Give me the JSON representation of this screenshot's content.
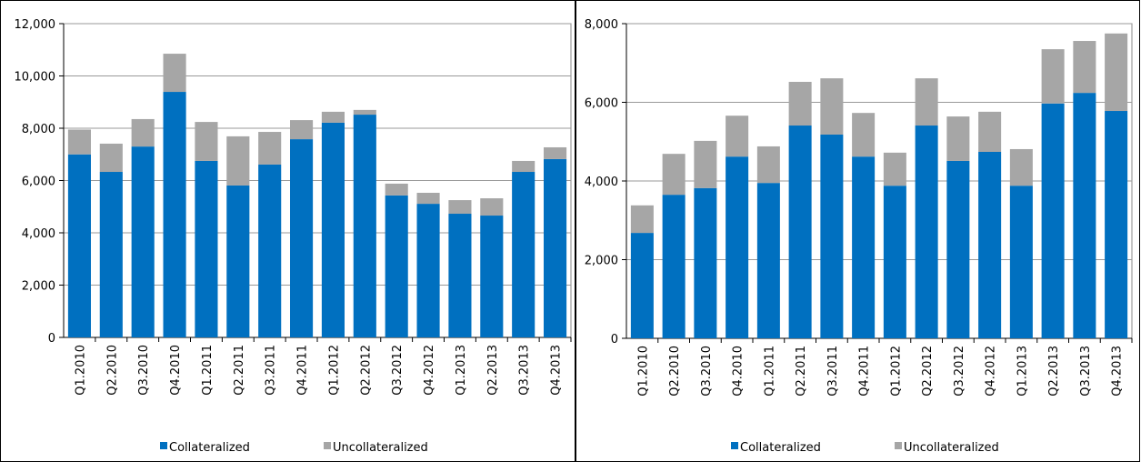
{
  "chart_data": [
    {
      "type": "bar",
      "stacked": true,
      "grid": true,
      "legend": "bottom",
      "categories": [
        "Q1.2010",
        "Q2.2010",
        "Q3.2010",
        "Q4.2010",
        "Q1.2011",
        "Q2.2011",
        "Q3.2011",
        "Q4.2011",
        "Q1.2012",
        "Q2.2012",
        "Q3.2012",
        "Q4.2012",
        "Q1.2013",
        "Q2.2013",
        "Q3.2013",
        "Q4.2013"
      ],
      "series": [
        {
          "name": "Collateralized",
          "color": "#0070c0",
          "values": [
            7000,
            6330,
            7300,
            9390,
            6750,
            5810,
            6610,
            7580,
            8210,
            8520,
            5430,
            5110,
            4730,
            4660,
            6330,
            6820
          ]
        },
        {
          "name": "Uncollateralized",
          "color": "#a6a6a6",
          "values": [
            950,
            1080,
            1050,
            1460,
            1490,
            1880,
            1250,
            730,
            420,
            180,
            450,
            420,
            520,
            660,
            420,
            450
          ]
        }
      ],
      "ylim": [
        0,
        12000
      ],
      "yticks": [
        0,
        {
          "value": 2000,
          "label": "2,000"
        },
        {
          "value": 4000,
          "label": "4,000"
        },
        {
          "value": 6000,
          "label": "6,000"
        },
        {
          "value": 8000,
          "label": "8,000"
        },
        {
          "value": 10000,
          "label": "10,000"
        },
        {
          "value": 12000,
          "label": "12,000"
        }
      ]
    },
    {
      "type": "bar",
      "stacked": true,
      "grid": true,
      "legend": "bottom",
      "categories": [
        "Q1.2010",
        "Q2.2010",
        "Q3.2010",
        "Q4.2010",
        "Q1.2011",
        "Q2.2011",
        "Q3.2011",
        "Q4.2011",
        "Q1.2012",
        "Q2.2012",
        "Q3.2012",
        "Q4.2012",
        "Q1.2013",
        "Q2.2013",
        "Q3.2013",
        "Q4.2013"
      ],
      "series": [
        {
          "name": "Collateralized",
          "color": "#0070c0",
          "values": [
            2680,
            3650,
            3820,
            4620,
            3950,
            5410,
            5180,
            4620,
            3880,
            5410,
            4510,
            4740,
            3880,
            5970,
            6240,
            5780
          ]
        },
        {
          "name": "Uncollateralized",
          "color": "#a6a6a6",
          "values": [
            700,
            1040,
            1200,
            1040,
            930,
            1110,
            1430,
            1110,
            840,
            1200,
            1130,
            1020,
            930,
            1380,
            1320,
            1970
          ]
        }
      ],
      "ylim": [
        0,
        8000
      ],
      "yticks": [
        0,
        {
          "value": 2000,
          "label": "2,000"
        },
        {
          "value": 4000,
          "label": "4,000"
        },
        {
          "value": 6000,
          "label": "6,000"
        },
        {
          "value": 8000,
          "label": "8,000"
        }
      ]
    }
  ]
}
